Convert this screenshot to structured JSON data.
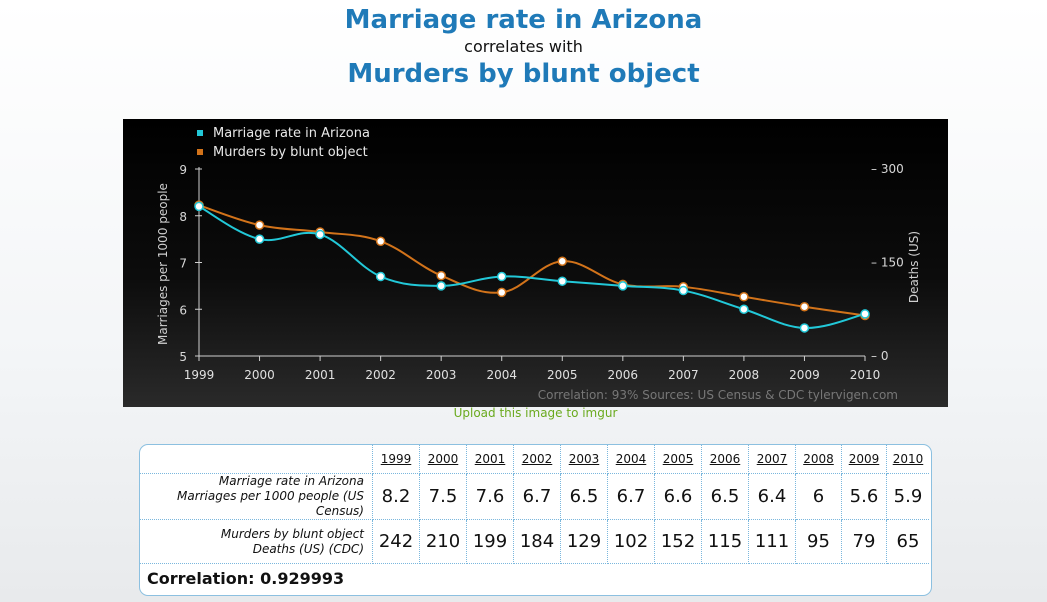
{
  "title": {
    "line1": "Marriage rate in Arizona",
    "line2": "correlates with",
    "line3": "Murders by blunt object"
  },
  "chart_data": {
    "type": "line",
    "x": [
      1999,
      2000,
      2001,
      2002,
      2003,
      2004,
      2005,
      2006,
      2007,
      2008,
      2009,
      2010
    ],
    "series": [
      {
        "name": "Marriage rate in Arizona",
        "color": "#22c8d8",
        "axis": "left",
        "values": [
          8.2,
          7.5,
          7.6,
          6.7,
          6.5,
          6.7,
          6.6,
          6.5,
          6.4,
          6.0,
          5.6,
          5.9
        ]
      },
      {
        "name": "Murders by blunt object",
        "color": "#d2731a",
        "axis": "right",
        "values": [
          242,
          210,
          199,
          184,
          129,
          102,
          152,
          115,
          111,
          95,
          79,
          65
        ]
      }
    ],
    "ylabel_left": "Marriages per 1000 people",
    "ylabel_right": "Deaths (US)",
    "ylim_left": [
      5,
      9
    ],
    "yticks_left": [
      "5",
      "6",
      "7",
      "8",
      "9"
    ],
    "ylim_right": [
      0,
      300
    ],
    "yticks_right": [
      "0",
      "150",
      "300"
    ],
    "xticks": [
      "1999",
      "2000",
      "2001",
      "2002",
      "2003",
      "2004",
      "2005",
      "2006",
      "2007",
      "2008",
      "2009",
      "2010"
    ],
    "legend_position": "top-left",
    "footer": "Correlation: 93%    Sources: US Census & CDC    tylervigen.com"
  },
  "upload_link": "Upload this image to imgur",
  "table": {
    "years": [
      "1999",
      "2000",
      "2001",
      "2002",
      "2003",
      "2004",
      "2005",
      "2006",
      "2007",
      "2008",
      "2009",
      "2010"
    ],
    "rows": [
      {
        "label": "Marriage rate in Arizona",
        "sublabel": "Marriages per 1000 people (US Census)",
        "values": [
          "8.2",
          "7.5",
          "7.6",
          "6.7",
          "6.5",
          "6.7",
          "6.6",
          "6.5",
          "6.4",
          "6",
          "5.6",
          "5.9"
        ]
      },
      {
        "label": "Murders by blunt object",
        "sublabel": "Deaths (US) (CDC)",
        "values": [
          "242",
          "210",
          "199",
          "184",
          "129",
          "102",
          "152",
          "115",
          "111",
          "95",
          "79",
          "65"
        ]
      }
    ],
    "correlation": "Correlation: 0.929993"
  }
}
